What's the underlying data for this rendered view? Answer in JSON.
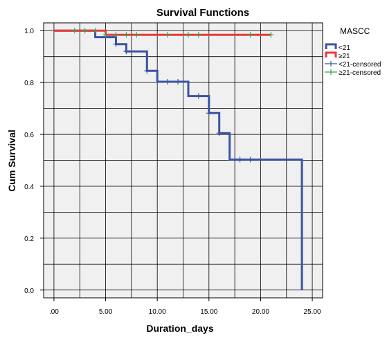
{
  "chart_data": {
    "type": "line",
    "title": "Survival Functions",
    "xlabel": "Duration_days",
    "ylabel": "Cum Survival",
    "xlim": [
      -1,
      26
    ],
    "ylim": [
      -0.03,
      1.03
    ],
    "x_ticks": [
      0,
      5,
      10,
      15,
      20,
      25
    ],
    "x_tick_labels": [
      ".00",
      "5.00",
      "10.00",
      "15.00",
      "20.00",
      "25.00"
    ],
    "y_ticks": [
      0,
      0.2,
      0.4,
      0.6,
      0.8,
      1.0
    ],
    "y_tick_labels": [
      "0.0",
      "0.2",
      "0.4",
      "0.6",
      "0.8",
      "1.0"
    ],
    "grid": true,
    "legend": {
      "title": "MASCC",
      "placement": "right",
      "entries": [
        {
          "label": "<21",
          "kind": "line",
          "color": "#3a53a4"
        },
        {
          "label": "≥21",
          "kind": "line",
          "color": "#e8393a"
        },
        {
          "label": "<21-censored",
          "kind": "cross",
          "color": "#3a53a4"
        },
        {
          "label": "≥21-censored",
          "kind": "cross",
          "color": "#2ea84a"
        }
      ]
    },
    "series": [
      {
        "name": "<21",
        "color": "#3a53a4",
        "step_x": [
          0,
          4,
          4,
          6,
          6,
          7,
          7,
          9,
          9,
          10,
          10,
          13,
          13,
          15,
          15,
          16,
          16,
          17,
          17,
          24,
          24
        ],
        "step_y": [
          1.0,
          1.0,
          0.975,
          0.975,
          0.948,
          0.948,
          0.92,
          0.92,
          0.845,
          0.845,
          0.803,
          0.803,
          0.748,
          0.748,
          0.682,
          0.682,
          0.605,
          0.605,
          0.503,
          0.503,
          0.0
        ]
      },
      {
        "name": "≥21",
        "color": "#e8393a",
        "step_x": [
          0,
          5,
          5,
          21
        ],
        "step_y": [
          1.0,
          1.0,
          0.984,
          0.984
        ]
      }
    ],
    "censored": [
      {
        "name": "<21-censored",
        "color": "#3a53a4",
        "points": [
          [
            6,
            0.948
          ],
          [
            7,
            0.92
          ],
          [
            9,
            0.845
          ],
          [
            11,
            0.803
          ],
          [
            12,
            0.803
          ],
          [
            14,
            0.748
          ],
          [
            15,
            0.682
          ],
          [
            16,
            0.605
          ],
          [
            18,
            0.503
          ],
          [
            19,
            0.503
          ]
        ]
      },
      {
        "name": "≥21-censored",
        "color": "#2ea84a",
        "points": [
          [
            2,
            1.0
          ],
          [
            3,
            1.0
          ],
          [
            4,
            1.0
          ],
          [
            5,
            0.984
          ],
          [
            6,
            0.984
          ],
          [
            7,
            0.984
          ],
          [
            8,
            0.984
          ],
          [
            11,
            0.984
          ],
          [
            13,
            0.984
          ],
          [
            14,
            0.984
          ],
          [
            19,
            0.984
          ],
          [
            21,
            0.984
          ]
        ]
      }
    ],
    "colors": {
      "plot_background": "#f0f0f0",
      "grid": "#000000"
    }
  }
}
